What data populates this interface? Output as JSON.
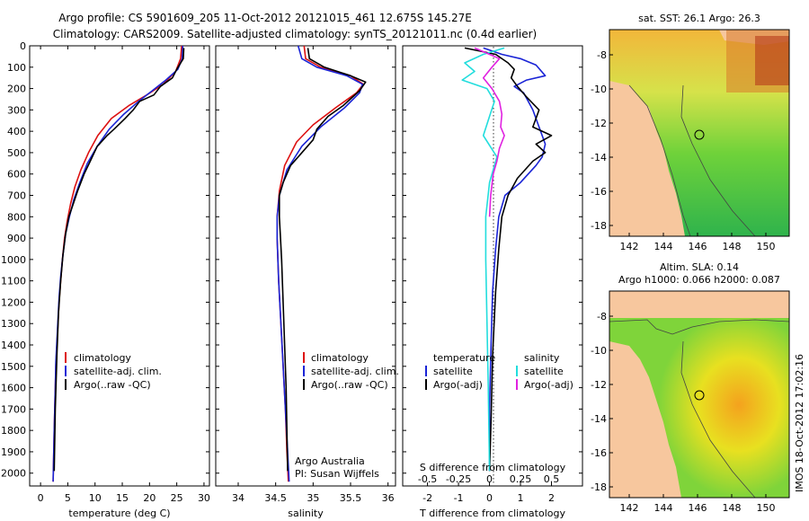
{
  "figure": {
    "title_line1": "Argo profile: CS 5901609_205 11-Oct-2012 20121015_461 12.675S 145.27E",
    "title_line2": "Climatology: CARS2009. Satellite-adjusted climatology: synTS_20121011.nc (0.4d earlier)",
    "credit": "Argo Australia",
    "pi": "PI: Susan Wijffels",
    "footer_stamp": "IMOS 18-Oct-2012 17:02:16"
  },
  "legend": {
    "climatology": "climatology",
    "satellite_adj": "satellite-adj. clim.",
    "argo_raw": "Argo(..raw -QC)",
    "temperature": "temperature",
    "salinity": "salinity",
    "satellite": "satellite",
    "argo_adj": "Argo(-adj)"
  },
  "colors": {
    "climatology": "#dd1111",
    "satellite": "#1a24d6",
    "argo": "#000000",
    "salinity_satellite": "#22dddd",
    "salinity_argo": "#e022e0",
    "land": "#f7c79e"
  },
  "maps": {
    "sst_title": "sat. SST: 26.1 Argo: 26.3",
    "sla_title_line1": "Altim. SLA: 0.14",
    "sla_title_line2": "Argo h1000: 0.066 h2000: 0.087",
    "lon_ticks": [
      "142",
      "144",
      "146",
      "148",
      "150"
    ],
    "lat_ticks": [
      "-8",
      "-10",
      "-12",
      "-14",
      "-16",
      "-18"
    ]
  },
  "chart_data": [
    {
      "type": "line",
      "xlabel": "temperature (deg C)",
      "ylabel": "",
      "xlim": [
        -2,
        31
      ],
      "ylim": [
        2060,
        0
      ],
      "xticks": [
        0,
        5,
        10,
        15,
        20,
        25,
        30
      ],
      "yticks": [
        0,
        100,
        200,
        300,
        400,
        500,
        600,
        700,
        800,
        900,
        1000,
        1100,
        1200,
        1300,
        1400,
        1500,
        1600,
        1700,
        1800,
        1900,
        2000
      ],
      "series": [
        {
          "name": "climatology",
          "color": "#dd1111",
          "x": [
            25.9,
            25.7,
            24.8,
            22.5,
            19.5,
            16.2,
            13.0,
            10.5,
            8.8,
            7.4,
            6.3,
            5.5,
            4.9,
            4.4,
            4.0,
            3.7,
            3.4,
            3.2,
            3.0,
            2.8,
            2.7,
            2.5,
            2.3
          ],
          "y": [
            0,
            60,
            120,
            180,
            230,
            280,
            340,
            420,
            500,
            580,
            660,
            740,
            820,
            900,
            1000,
            1100,
            1200,
            1300,
            1400,
            1500,
            1600,
            1800,
            2040
          ]
        },
        {
          "name": "satellite-adj. clim.",
          "color": "#1a24d6",
          "x": [
            26.1,
            26.0,
            25.2,
            23.0,
            20.5,
            18.0,
            15.3,
            12.6,
            10.4,
            8.6,
            7.2,
            6.1,
            5.3,
            4.6,
            4.1,
            3.7,
            3.4,
            3.2,
            3.0,
            2.8,
            2.7,
            2.5,
            2.3
          ],
          "y": [
            0,
            60,
            110,
            160,
            210,
            260,
            320,
            390,
            470,
            550,
            640,
            720,
            800,
            880,
            980,
            1080,
            1180,
            1280,
            1380,
            1480,
            1600,
            1800,
            2040
          ]
        },
        {
          "name": "Argo(..raw -QC)",
          "color": "#000000",
          "x": [
            26.3,
            26.2,
            25.0,
            24.2,
            22.0,
            20.8,
            18.2,
            17.0,
            15.5,
            13.5,
            12.2,
            10.8,
            10.4,
            9.3,
            8.0,
            6.8,
            6.0,
            5.2,
            4.6,
            4.1,
            3.7,
            3.3,
            3.0,
            2.7,
            2.5
          ],
          "y": [
            10,
            60,
            110,
            150,
            190,
            230,
            260,
            300,
            340,
            390,
            420,
            460,
            470,
            530,
            600,
            680,
            740,
            800,
            880,
            980,
            1100,
            1250,
            1450,
            1700,
            1990
          ]
        }
      ]
    },
    {
      "type": "line",
      "xlabel": "salinity",
      "ylabel": "",
      "xlim": [
        33.7,
        36.1
      ],
      "ylim": [
        2060,
        0
      ],
      "xticks": [
        34,
        34.5,
        35,
        35.5,
        36
      ],
      "series": [
        {
          "name": "climatology",
          "color": "#dd1111",
          "x": [
            34.88,
            34.9,
            35.1,
            35.5,
            35.67,
            35.58,
            35.3,
            35.0,
            34.78,
            34.62,
            34.55,
            34.52,
            34.52,
            34.54,
            34.57,
            34.6,
            34.63,
            34.65,
            34.67
          ],
          "y": [
            0,
            60,
            100,
            140,
            180,
            220,
            290,
            370,
            450,
            560,
            680,
            800,
            900,
            1100,
            1300,
            1500,
            1700,
            1900,
            2040
          ]
        },
        {
          "name": "satellite-adj. clim.",
          "color": "#1a24d6",
          "x": [
            34.8,
            34.85,
            35.05,
            35.45,
            35.66,
            35.62,
            35.42,
            35.1,
            34.85,
            34.65,
            34.55,
            34.52,
            34.52,
            34.54,
            34.57,
            34.6,
            34.63,
            34.66,
            34.68
          ],
          "y": [
            0,
            60,
            100,
            140,
            180,
            220,
            290,
            380,
            470,
            580,
            700,
            800,
            900,
            1100,
            1300,
            1500,
            1700,
            1900,
            2040
          ]
        },
        {
          "name": "Argo(..raw -QC)",
          "color": "#000000",
          "x": [
            34.93,
            34.95,
            35.15,
            35.5,
            35.7,
            35.62,
            35.4,
            35.2,
            35.05,
            35.0,
            34.9,
            34.8,
            34.7,
            34.6,
            34.55,
            34.55,
            34.58,
            34.61,
            34.64,
            34.66
          ],
          "y": [
            10,
            60,
            100,
            140,
            170,
            210,
            280,
            330,
            390,
            440,
            480,
            520,
            560,
            640,
            700,
            800,
            1000,
            1300,
            1600,
            1990
          ]
        }
      ]
    },
    {
      "type": "line",
      "xlabel": "T difference from climatology",
      "xlabel_top": "S difference from climatology",
      "ylabel": "",
      "xlim": [
        -2.8,
        3.0
      ],
      "ylim": [
        2060,
        0
      ],
      "xticks_T": [
        "-2",
        "-1",
        "0",
        "1",
        "2"
      ],
      "xticks_T_values": [
        -2,
        -1,
        0,
        1,
        2
      ],
      "xticks_S": [
        "-0.5",
        "-0.25",
        "0",
        "0.25",
        "0.5"
      ],
      "xticks_S_values": [
        -0.5,
        -0.25,
        0,
        0.25,
        0.5
      ],
      "series": [
        {
          "name": "temperature satellite",
          "color": "#1a24d6",
          "x": [
            -0.2,
            0.4,
            1.0,
            1.5,
            1.8,
            1.2,
            0.8,
            1.1,
            1.4,
            1.6,
            1.8,
            1.7,
            1.5,
            1.0,
            0.5,
            0.3,
            0.2,
            0.1,
            0.05,
            0.0,
            0.0
          ],
          "y": [
            10,
            40,
            60,
            90,
            140,
            160,
            190,
            220,
            300,
            380,
            460,
            520,
            560,
            640,
            700,
            800,
            950,
            1150,
            1400,
            1700,
            1990
          ]
        },
        {
          "name": "temperature Argo(-adj)",
          "color": "#000000",
          "x": [
            -0.8,
            0.2,
            0.6,
            0.8,
            0.7,
            0.9,
            1.2,
            1.6,
            1.4,
            2.0,
            1.5,
            1.8,
            1.4,
            0.9,
            0.6,
            0.4,
            0.3,
            0.2,
            0.1,
            0.05,
            0.0
          ],
          "y": [
            10,
            40,
            80,
            110,
            150,
            190,
            240,
            300,
            380,
            420,
            460,
            500,
            540,
            620,
            700,
            800,
            950,
            1150,
            1450,
            1750,
            1990
          ]
        },
        {
          "name": "salinity satellite",
          "color": "#22dddd",
          "x": [
            0.12,
            -0.05,
            -0.2,
            -0.12,
            -0.22,
            -0.02,
            0.04,
            0.0,
            -0.05,
            0.06,
            0.0,
            -0.03,
            -0.03,
            -0.02,
            -0.01,
            0.0
          ],
          "y": [
            10,
            40,
            80,
            120,
            160,
            200,
            260,
            330,
            420,
            520,
            640,
            800,
            1000,
            1300,
            1600,
            1990
          ]
        },
        {
          "name": "salinity Argo(-adj)",
          "color": "#e022e0",
          "x": [
            -0.12,
            0.0,
            0.08,
            0.02,
            -0.05,
            0.02,
            0.08,
            0.1,
            0.09,
            0.12,
            0.08,
            0.06,
            0.03,
            0.01,
            0.0
          ],
          "y": [
            10,
            40,
            60,
            100,
            150,
            200,
            260,
            320,
            380,
            420,
            480,
            540,
            600,
            700,
            800
          ]
        }
      ]
    }
  ]
}
